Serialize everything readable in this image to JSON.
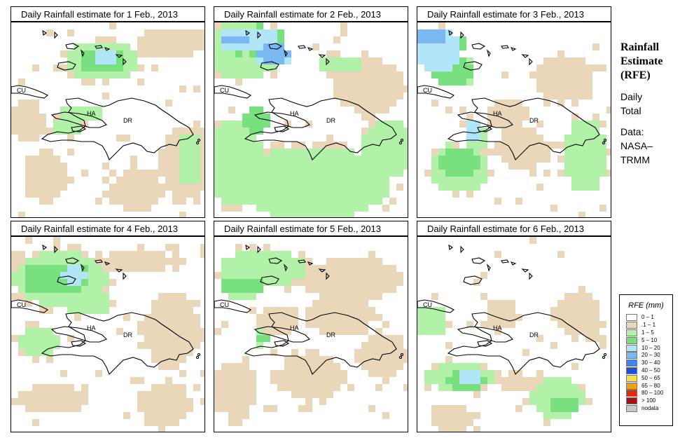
{
  "panels": [
    {
      "title": "Daily Rainfall estimate for  1 Feb., 2013"
    },
    {
      "title": "Daily Rainfall estimate for  2 Feb., 2013"
    },
    {
      "title": "Daily Rainfall estimate for  3 Feb., 2013"
    },
    {
      "title": "Daily Rainfall estimate for  4 Feb., 2013"
    },
    {
      "title": "Daily Rainfall estimate for  5 Feb., 2013"
    },
    {
      "title": "Daily Rainfall estimate for  6 Feb., 2013"
    }
  ],
  "map_labels": {
    "cuba": "CU",
    "haiti": "HA",
    "dominican_republic": "DR"
  },
  "side": {
    "title_line1": "Rainfall",
    "title_line2": "Estimate",
    "title_line3": "(RFE)",
    "subtitle_line1": "Daily",
    "subtitle_line2": "Total",
    "source_line1": "Data:",
    "source_line2": "NASA–",
    "source_line3": "TRMM"
  },
  "legend": {
    "title": "RFE (mm)",
    "items": [
      {
        "label": "0 – 1",
        "color": "#ffffff"
      },
      {
        "label": ".1 – 1",
        "color": "#ead6b8"
      },
      {
        "label": "1 – 5",
        "color": "#b2f2a8"
      },
      {
        "label": "5 – 10",
        "color": "#78e07e"
      },
      {
        "label": "10 – 20",
        "color": "#b0e6f8"
      },
      {
        "label": "20 – 30",
        "color": "#7ab8f2"
      },
      {
        "label": "30 – 40",
        "color": "#3f83ec"
      },
      {
        "label": "40 – 50",
        "color": "#1d4fdc"
      },
      {
        "label": "50 – 65",
        "color": "#f7de50"
      },
      {
        "label": "65 – 80",
        "color": "#f79f12"
      },
      {
        "label": "80 – 100",
        "color": "#e3290f"
      },
      {
        "label": "> 100",
        "color": "#a31313"
      },
      {
        "label": "nodata",
        "color": "#c8c8c8"
      }
    ]
  }
}
